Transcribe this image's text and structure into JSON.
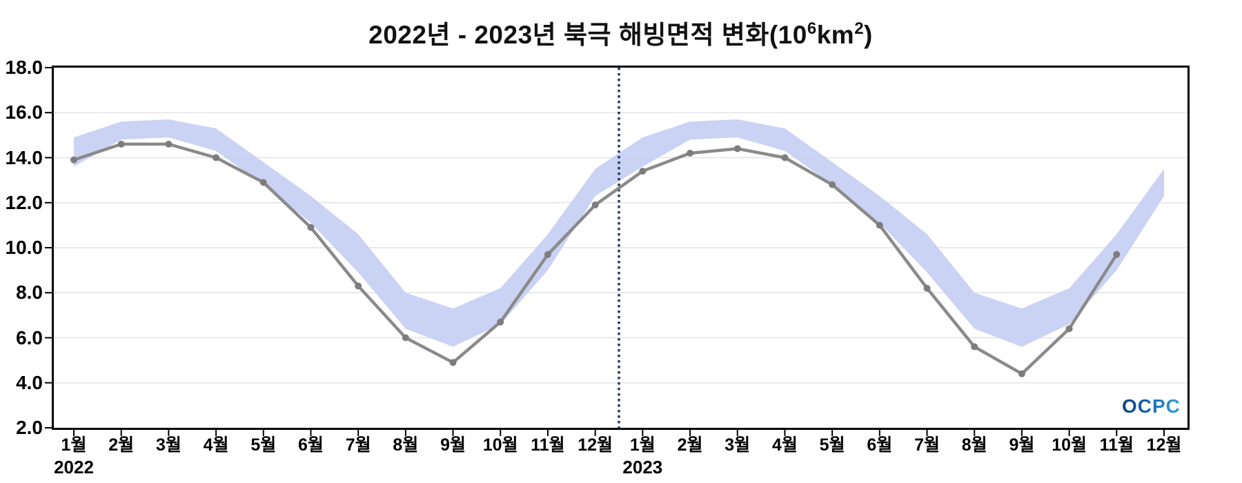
{
  "title": {
    "text_prefix": "2022년 - 2023년 북극 해빙면적 변화(10",
    "sup_exp": "6",
    "unit": "km",
    "sup_unit": "2",
    "suffix": ")",
    "full": "2022년 - 2023년 북극 해빙면적 변화(10⁶km²)"
  },
  "logo": {
    "text": "OCPC"
  },
  "chart_data": {
    "type": "line",
    "title": "2022년 - 2023년 북극 해빙면적 변화(10⁶km²)",
    "xlabel": "",
    "ylabel": "",
    "ylim": [
      2.0,
      18.0
    ],
    "ytick_step": 2.0,
    "ytick_labels": [
      "2.0",
      "4.0",
      "6.0",
      "8.0",
      "10.0",
      "12.0",
      "14.0",
      "16.0",
      "18.0"
    ],
    "grid": true,
    "legend": "none",
    "categories": [
      "1월",
      "2월",
      "3월",
      "4월",
      "5월",
      "6월",
      "7월",
      "8월",
      "9월",
      "10월",
      "11월",
      "12월",
      "1월",
      "2월",
      "3월",
      "4월",
      "5월",
      "6월",
      "7월",
      "8월",
      "9월",
      "10월",
      "11월",
      "12월"
    ],
    "year_labels": [
      {
        "label": "2022",
        "index": 0
      },
      {
        "label": "2023",
        "index": 12
      }
    ],
    "series": [
      {
        "name": "monthly-sea-ice-extent",
        "type": "line",
        "color": "#8a8a8a",
        "marker": "circle",
        "values": [
          13.9,
          14.6,
          14.6,
          14.0,
          12.9,
          10.9,
          8.3,
          6.0,
          4.9,
          6.7,
          9.7,
          11.9,
          13.4,
          14.2,
          14.4,
          14.0,
          12.8,
          11.0,
          8.2,
          5.6,
          4.4,
          6.4,
          9.7,
          null
        ]
      }
    ],
    "band": {
      "name": "range-band",
      "color": "#c7d1f3",
      "opacity": 0.95,
      "upper": [
        14.9,
        15.6,
        15.7,
        15.3,
        13.8,
        12.3,
        10.6,
        8.0,
        7.3,
        8.2,
        10.6,
        13.5,
        14.9,
        15.6,
        15.7,
        15.3,
        13.8,
        12.3,
        10.6,
        8.0,
        7.3,
        8.2,
        10.6,
        13.5
      ],
      "lower": [
        13.6,
        14.8,
        14.9,
        14.3,
        12.8,
        11.1,
        8.9,
        6.4,
        5.6,
        6.6,
        9.0,
        12.3,
        13.6,
        14.8,
        14.9,
        14.3,
        12.8,
        11.1,
        8.9,
        6.4,
        5.6,
        6.6,
        9.0,
        12.3
      ]
    },
    "separator": {
      "between_indices": [
        11,
        12
      ],
      "color": "#1f3a68",
      "style": "dotted"
    },
    "colors": {
      "grid": "#e6e6e6",
      "spine": "#000000",
      "background": "#ffffff"
    }
  }
}
